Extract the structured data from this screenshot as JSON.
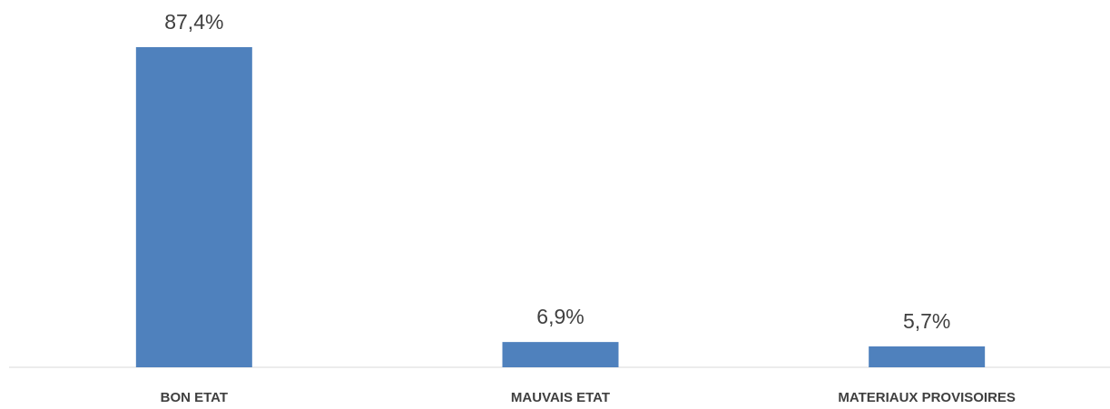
{
  "chart_data": {
    "type": "bar",
    "categories": [
      "BON ETAT",
      "MAUVAIS ETAT",
      "MATERIAUX PROVISOIRES"
    ],
    "values": [
      87.4,
      6.9,
      5.7
    ],
    "value_labels": [
      "87,4%",
      "6,9%",
      "5,7%"
    ],
    "color": "#4f81bd"
  }
}
